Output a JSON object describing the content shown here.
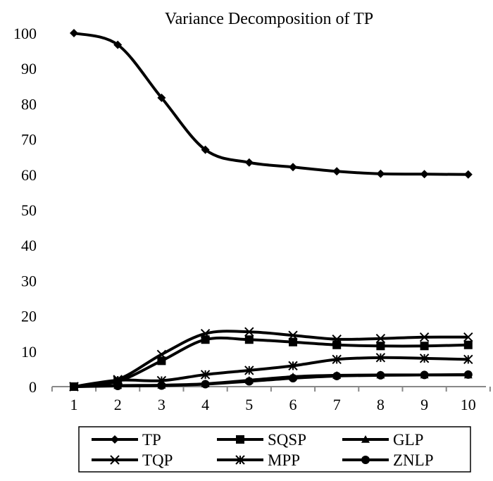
{
  "chart_data": {
    "type": "line",
    "title": "Variance Decomposition of TP",
    "xlabel": "",
    "ylabel": "",
    "x": [
      1,
      2,
      3,
      4,
      5,
      6,
      7,
      8,
      9,
      10
    ],
    "ylim": [
      0,
      100
    ],
    "yticks": [
      0,
      10,
      20,
      30,
      40,
      50,
      60,
      70,
      80,
      90,
      100
    ],
    "grid": false,
    "legend_placement": "bottom",
    "series": [
      {
        "name": "TP",
        "marker": "diamond",
        "values": [
          100,
          96.7,
          81.7,
          67.0,
          63.4,
          62.1,
          60.9,
          60.2,
          60.1,
          60.0
        ]
      },
      {
        "name": "SQSP",
        "marker": "square",
        "values": [
          0,
          1.5,
          7.3,
          13.3,
          13.3,
          12.6,
          11.8,
          11.5,
          11.5,
          11.8
        ]
      },
      {
        "name": "GLP",
        "marker": "triangle",
        "values": [
          0,
          0.3,
          0.4,
          0.8,
          1.8,
          2.8,
          3.2,
          3.3,
          3.3,
          3.3
        ]
      },
      {
        "name": "TQP",
        "marker": "x",
        "values": [
          0,
          2.0,
          9.1,
          15.0,
          15.5,
          14.5,
          13.4,
          13.6,
          14.0,
          14.0
        ]
      },
      {
        "name": "MPP",
        "marker": "star",
        "values": [
          0,
          1.8,
          1.7,
          3.4,
          4.6,
          5.9,
          7.7,
          8.2,
          8.0,
          7.7
        ]
      },
      {
        "name": "ZNLP",
        "marker": "circle",
        "values": [
          0,
          0.2,
          0.3,
          0.7,
          1.5,
          2.4,
          3.0,
          3.2,
          3.3,
          3.4
        ]
      }
    ]
  }
}
